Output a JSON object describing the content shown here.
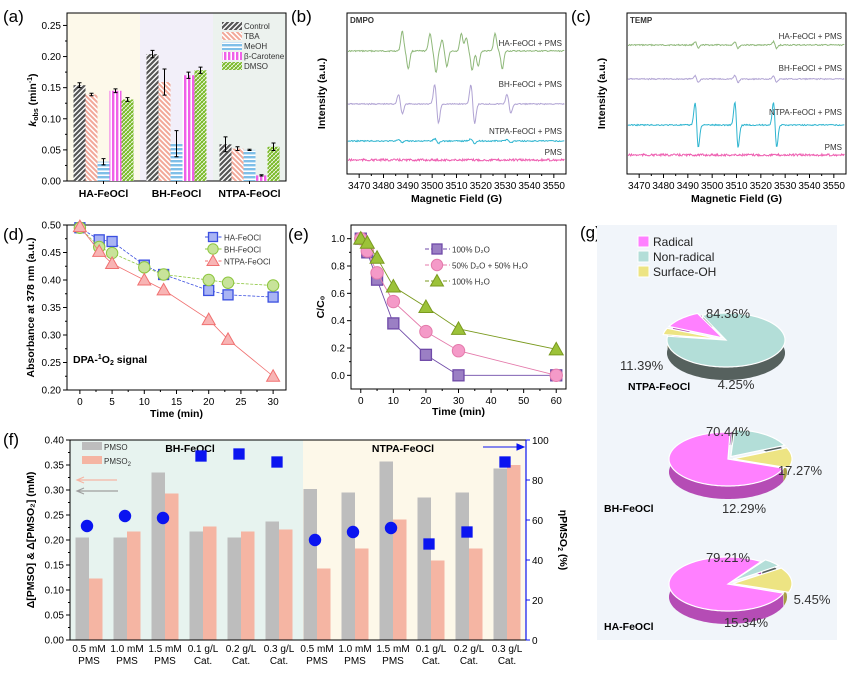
{
  "panel_labels": {
    "a": "(a)",
    "b": "(b)",
    "c": "(c)",
    "d": "(d)",
    "e": "(e)",
    "f": "(f)",
    "g": "(g)"
  },
  "colors": {
    "control": "#555555",
    "tba": "#f2a898",
    "meoh": "#7fbfe8",
    "bcarotene": "#f060e8",
    "dmso": "#7cbb2c",
    "epr_ha": "#8fb87a",
    "epr_bh": "#b0a3d3",
    "epr_ntpa": "#2fb5d0",
    "epr_pms": "#ee5db0",
    "d_ha": "#3b4fe0",
    "d_bh": "#8dc63f",
    "d_ntpa": "#f07070",
    "e_d2o": "#9b7fc4",
    "e_mix": "#f49ac8",
    "e_h2o": "#9cc239",
    "pmso": "#bdbdbd",
    "pmso2": "#f5b5a3",
    "eta": "#0a14f0",
    "radical": "#ff80ff",
    "nonradical": "#b3ded8",
    "surfaceoh": "#ede483"
  },
  "chart_data": [
    {
      "id": "a",
      "type": "bar",
      "title": "",
      "xlabel": "",
      "ylabel": "k_obs (min^-1)",
      "ylim": [
        0,
        0.27
      ],
      "yticks": [
        "0.00",
        "0.05",
        "0.10",
        "0.15",
        "0.20",
        "0.25"
      ],
      "categories": [
        "HA-FeOCl",
        "BH-FeOCl",
        "NTPA-FeOCl"
      ],
      "series": [
        {
          "name": "Control",
          "values": [
            0.154,
            0.204,
            0.059
          ],
          "errors": [
            0.004,
            0.006,
            0.012
          ]
        },
        {
          "name": "TBA",
          "values": [
            0.139,
            0.159,
            0.052
          ],
          "errors": [
            0.002,
            0.021,
            0.003
          ]
        },
        {
          "name": "MeOH",
          "values": [
            0.031,
            0.06,
            0.05
          ],
          "errors": [
            0.005,
            0.021,
            0.001
          ]
        },
        {
          "name": "β-Carotene",
          "values": [
            0.145,
            0.17,
            0.009
          ],
          "errors": [
            0.003,
            0.005,
            0.001
          ]
        },
        {
          "name": "DMSO",
          "values": [
            0.131,
            0.178,
            0.055
          ],
          "errors": [
            0.003,
            0.005,
            0.006
          ]
        }
      ],
      "legend_position": "top-right"
    },
    {
      "id": "b",
      "type": "line",
      "title": "DMPO",
      "xlabel": "Magnetic Field (G)",
      "ylabel": "Intensity (a.u.)",
      "xlim": [
        3465,
        3555
      ],
      "xticks": [
        "3470",
        "3480",
        "3490",
        "3500",
        "3510",
        "3520",
        "3530",
        "3540",
        "3550"
      ],
      "series": [
        {
          "name": "HA-FeOCl + PMS",
          "peaks": [
            [
              3487.5,
              0.9
            ],
            [
              3490,
              -0.8
            ],
            [
              3499,
              0.8
            ],
            [
              3501.5,
              -1
            ],
            [
              3504,
              0.5
            ],
            [
              3506,
              -0.7
            ],
            [
              3512,
              0.8
            ],
            [
              3514,
              0.6
            ],
            [
              3516.5,
              -0.9
            ],
            [
              3519,
              -0.7
            ],
            [
              3526,
              0.8
            ],
            [
              3529,
              -0.8
            ]
          ]
        },
        {
          "name": "BH-FeOCl + PMS",
          "peaks": [
            [
              3486,
              0.5
            ],
            [
              3487.5,
              -0.5
            ],
            [
              3501,
              1
            ],
            [
              3502.5,
              -1
            ],
            [
              3516,
              1
            ],
            [
              3517.5,
              -1
            ],
            [
              3531,
              0.5
            ],
            [
              3532.5,
              -0.5
            ]
          ]
        },
        {
          "name": "NTPA-FeOCl + PMS",
          "peaks": [
            [
              3486,
              0.3
            ],
            [
              3487.5,
              -0.3
            ],
            [
              3501,
              0.4
            ],
            [
              3502.5,
              -0.4
            ],
            [
              3516,
              0.4
            ],
            [
              3517.5,
              -0.4
            ],
            [
              3531,
              0.3
            ],
            [
              3532.5,
              -0.3
            ]
          ]
        },
        {
          "name": "PMS",
          "peaks": []
        }
      ]
    },
    {
      "id": "c",
      "type": "line",
      "title": "TEMP",
      "xlabel": "Magnetic Field (G)",
      "ylabel": "Intensity (a.u.)",
      "xlim": [
        3465,
        3555
      ],
      "xticks": [
        "3470",
        "3480",
        "3490",
        "3500",
        "3510",
        "3520",
        "3530",
        "3540",
        "3550"
      ],
      "series": [
        {
          "name": "HA-FeOCl + PMS",
          "peaks": [
            [
              3493,
              0.15
            ],
            [
              3494,
              -0.15
            ],
            [
              3509.5,
              0.15
            ],
            [
              3510.5,
              -0.15
            ],
            [
              3525.5,
              0.15
            ],
            [
              3526.5,
              -0.15
            ]
          ]
        },
        {
          "name": "BH-FeOCl + PMS",
          "peaks": [
            [
              3493,
              0.15
            ],
            [
              3494,
              -0.15
            ],
            [
              3509.5,
              0.15
            ],
            [
              3510.5,
              -0.15
            ],
            [
              3525.5,
              0.15
            ],
            [
              3526.5,
              -0.15
            ]
          ]
        },
        {
          "name": "NTPA-FeOCl + PMS",
          "peaks": [
            [
              3493,
              1
            ],
            [
              3494,
              -1
            ],
            [
              3509.5,
              1
            ],
            [
              3510.5,
              -1
            ],
            [
              3525.5,
              1
            ],
            [
              3526.5,
              -1
            ]
          ]
        },
        {
          "name": "PMS",
          "peaks": []
        }
      ]
    },
    {
      "id": "d",
      "type": "line",
      "title": "",
      "annotation": "DPA-¹O₂ signal",
      "xlabel": "Time (min)",
      "ylabel": "Absorbance at 378 nm (a.u.)",
      "xlim": [
        -2,
        32
      ],
      "ylim": [
        0.2,
        0.5
      ],
      "xticks": [
        "0",
        "5",
        "10",
        "15",
        "20",
        "25",
        "30"
      ],
      "yticks": [
        "0.20",
        "0.25",
        "0.30",
        "0.35",
        "0.40",
        "0.45",
        "0.50"
      ],
      "series": [
        {
          "name": "HA-FeOCl",
          "marker": "square",
          "x": [
            0,
            3,
            5,
            10,
            13,
            20,
            23,
            30
          ],
          "y": [
            0.495,
            0.473,
            0.47,
            0.427,
            0.41,
            0.381,
            0.373,
            0.369
          ]
        },
        {
          "name": "BH-FeOCl",
          "marker": "circle",
          "x": [
            0,
            3,
            5,
            10,
            13,
            20,
            23,
            30
          ],
          "y": [
            0.495,
            0.46,
            0.449,
            0.423,
            0.41,
            0.4,
            0.395,
            0.39
          ]
        },
        {
          "name": "NTPA-FeOCl",
          "marker": "triangle",
          "x": [
            0,
            3,
            5,
            10,
            13,
            20,
            23,
            30
          ],
          "y": [
            0.497,
            0.452,
            0.43,
            0.4,
            0.382,
            0.328,
            0.292,
            0.225
          ]
        }
      ],
      "legend_position": "top-right"
    },
    {
      "id": "e",
      "type": "line",
      "title": "",
      "xlabel": "Time (min)",
      "ylabel": "C/C₀",
      "xlim": [
        -3,
        63
      ],
      "ylim": [
        -0.1,
        1.1
      ],
      "xticks": [
        "0",
        "10",
        "20",
        "30",
        "40",
        "50",
        "60"
      ],
      "yticks": [
        "0.0",
        "0.2",
        "0.4",
        "0.6",
        "0.8",
        "1.0"
      ],
      "series": [
        {
          "name": "100% D₂O",
          "marker": "square",
          "x": [
            0,
            2,
            5,
            10,
            20,
            30,
            60
          ],
          "y": [
            1.0,
            0.9,
            0.7,
            0.38,
            0.15,
            0.0,
            0.0
          ]
        },
        {
          "name": "50% D₂O + 50% H₂O",
          "marker": "circle",
          "x": [
            0,
            2,
            5,
            10,
            20,
            30,
            60
          ],
          "y": [
            1.0,
            0.91,
            0.75,
            0.54,
            0.32,
            0.18,
            0.0
          ]
        },
        {
          "name": "100% H₂O",
          "marker": "triangle",
          "x": [
            0,
            2,
            5,
            10,
            20,
            30,
            60
          ],
          "y": [
            1.0,
            0.97,
            0.86,
            0.65,
            0.5,
            0.34,
            0.19
          ]
        }
      ],
      "legend_position": "top-right"
    },
    {
      "id": "f",
      "type": "bar",
      "title": "",
      "groups": [
        "BH-FeOCl",
        "NTPA-FeOCl"
      ],
      "xlabel": "",
      "ylabel": "Δ[PMSO] & Δ[PMSO₂] (mM)",
      "y2label": "ηPMSO₂ (%)",
      "ylim": [
        0,
        0.4
      ],
      "y2lim": [
        0,
        100
      ],
      "yticks": [
        "0.00",
        "0.05",
        "0.10",
        "0.15",
        "0.20",
        "0.25",
        "0.30",
        "0.35",
        "0.40"
      ],
      "y2ticks": [
        "0",
        "20",
        "40",
        "60",
        "80",
        "100"
      ],
      "categories": [
        [
          "0.5 mM",
          "PMS"
        ],
        [
          "1.0 mM",
          "PMS"
        ],
        [
          "1.5 mM",
          "PMS"
        ],
        [
          "0.1 g/L",
          "Cat."
        ],
        [
          "0.2 g/L",
          "Cat."
        ],
        [
          "0.3 g/L",
          "Cat."
        ],
        [
          "0.5 mM",
          "PMS"
        ],
        [
          "1.0 mM",
          "PMS"
        ],
        [
          "1.5 mM",
          "PMS"
        ],
        [
          "0.1 g/L",
          "Cat."
        ],
        [
          "0.2 g/L",
          "Cat."
        ],
        [
          "0.3 g/L",
          "Cat."
        ]
      ],
      "series": [
        {
          "name": "PMSO",
          "values": [
            0.205,
            0.205,
            0.335,
            0.217,
            0.205,
            0.237,
            0.302,
            0.295,
            0.357,
            0.285,
            0.295,
            0.343
          ]
        },
        {
          "name": "PMSO₂",
          "values": [
            0.123,
            0.217,
            0.293,
            0.227,
            0.217,
            0.221,
            0.143,
            0.183,
            0.241,
            0.159,
            0.183,
            0.35
          ]
        },
        {
          "name": "ηPMSO₂",
          "axis": "right",
          "markers": [
            "circle",
            "circle",
            "circle",
            "square",
            "square",
            "square",
            "circle",
            "circle",
            "circle",
            "square",
            "square",
            "square"
          ],
          "values": [
            57,
            62,
            61,
            92,
            93,
            89,
            50,
            54,
            56,
            48,
            54,
            89
          ]
        }
      ],
      "legend_position": "top-left"
    },
    {
      "id": "g",
      "type": "pie",
      "title": "",
      "legend": [
        "Radical",
        "Non-radical",
        "Surface-OH"
      ],
      "pies": [
        {
          "name": "NTPA-FeOCl",
          "values": [
            11.39,
            84.36,
            4.25
          ],
          "labels": [
            "11.39%",
            "84.36%",
            "4.25%"
          ]
        },
        {
          "name": "BH-FeOCl",
          "values": [
            70.44,
            17.27,
            12.29
          ],
          "labels": [
            "70.44%",
            "17.27%",
            "12.29%"
          ]
        },
        {
          "name": "HA-FeOCl",
          "values": [
            79.21,
            5.45,
            15.34
          ],
          "labels": [
            "79.21%",
            "5.45%",
            "15.34%"
          ]
        }
      ],
      "legend_position": "top-left"
    }
  ]
}
